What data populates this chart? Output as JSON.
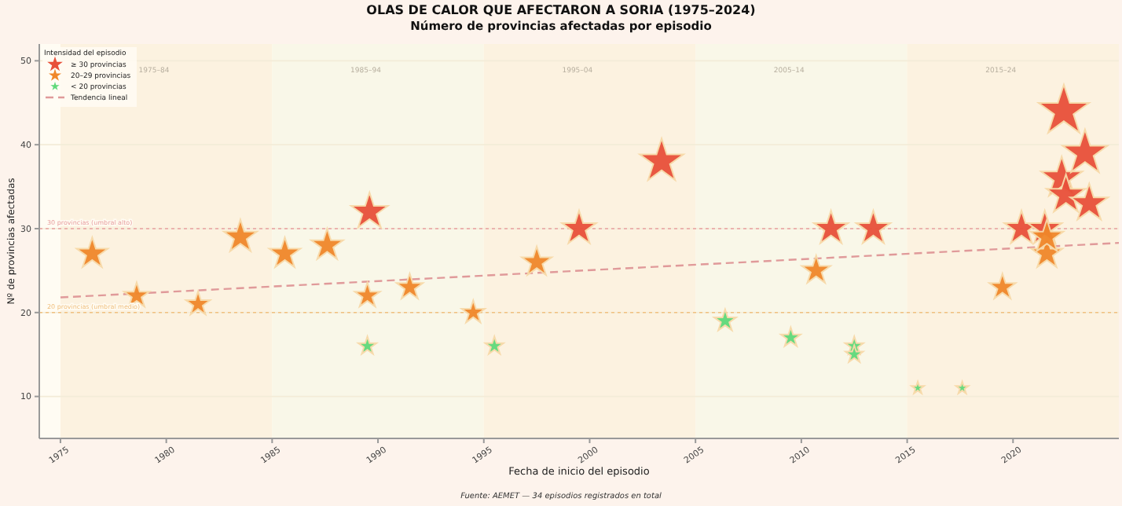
{
  "chart_data": {
    "type": "scatter",
    "title": "OLAS DE CALOR QUE AFECTARON A SORIA (1975–2024)",
    "subtitle": "Número de provincias afectadas por episodio",
    "xlabel": "Fecha de inicio del episodio",
    "ylabel": "Nº de provincias afectadas",
    "legend_title": "Intensidad del episodio",
    "annotations": [
      "Fuente: AEMET — 34 episodios registrados en total"
    ],
    "xlim": [
      1974,
      2025
    ],
    "xticks": [
      1975,
      1980,
      1985,
      1990,
      1995,
      2000,
      2005,
      2010,
      2015,
      2020
    ],
    "ylim": [
      5,
      52
    ],
    "yticks": [
      10,
      20,
      30,
      40,
      50
    ],
    "grid": "y",
    "legend": "top left",
    "marker": "star",
    "series": [
      {
        "name": "≥ 30 provincias",
        "color": "#e8503a",
        "x": [
          1989.6,
          1999.5,
          2003.4,
          2011.4,
          2013.4,
          2020.4,
          2021.5,
          2022.4,
          2022.3,
          2022.5,
          2023.4,
          2023.6
        ],
        "values": [
          32,
          30,
          38,
          30,
          30,
          30,
          30,
          44,
          36,
          34,
          39,
          33
        ],
        "sizes": [
          0.53,
          0.46,
          0.75,
          0.46,
          0.46,
          0.46,
          0.46,
          1,
          0.67,
          0.6,
          0.79,
          0.56
        ]
      },
      {
        "name": "20–29 provincias",
        "color": "#f0872a",
        "x": [
          1976.5,
          1978.6,
          1981.5,
          1983.5,
          1985.6,
          1987.6,
          1989.5,
          1991.5,
          1994.5,
          1997.5,
          2010.7,
          2019.5,
          2021.6,
          2021.6
        ],
        "values": [
          27,
          22,
          21,
          29,
          27,
          28,
          22,
          23,
          20,
          26,
          25,
          23,
          27,
          29
        ],
        "sizes": [
          0.38,
          0.25,
          0.23,
          0.43,
          0.38,
          0.4,
          0.25,
          0.27,
          0.21,
          0.35,
          0.32,
          0.27,
          0.38,
          0.43
        ]
      },
      {
        "name": "< 20 provincias",
        "color": "#5fd97a",
        "x": [
          1989.5,
          1995.5,
          2006.4,
          2009.5,
          2012.5,
          2012.5,
          2015.5,
          2017.6
        ],
        "values": [
          16,
          16,
          19,
          17,
          16,
          15,
          11,
          11
        ],
        "sizes": [
          0.13,
          0.13,
          0.19,
          0.15,
          0.13,
          0.12,
          0.06,
          0.06
        ]
      },
      {
        "name": "Tendencia lineal",
        "type": "line",
        "line_style": "dashed",
        "marker": "none",
        "color": "#e09a9a",
        "x": [
          1975,
          2025
        ],
        "values": [
          21.8,
          28.3
        ]
      }
    ],
    "ref_lines": [
      {
        "axis": "y",
        "value": 30,
        "label": "30 provincias (umbral alto)",
        "color": "#e8a0a0",
        "line_style": "dotted"
      },
      {
        "axis": "y",
        "value": 20,
        "label": "20 provincias (umbral medio)",
        "color": "#f0c080",
        "line_style": "dotted"
      }
    ],
    "bands": [
      {
        "axis": "x",
        "from": 1975,
        "to": 1985,
        "label": "1975–84",
        "color": "#fcf2e0"
      },
      {
        "axis": "x",
        "from": 1985,
        "to": 1995,
        "label": "1985–94",
        "color": "#f9f7e8"
      },
      {
        "axis": "x",
        "from": 1995,
        "to": 2005,
        "label": "1995–04",
        "color": "#fcf2e0"
      },
      {
        "axis": "x",
        "from": 2005,
        "to": 2015,
        "label": "2005–14",
        "color": "#f9f7e8"
      },
      {
        "axis": "x",
        "from": 2015,
        "to": 2025,
        "label": "2015–24",
        "color": "#fcf2e0"
      }
    ]
  }
}
